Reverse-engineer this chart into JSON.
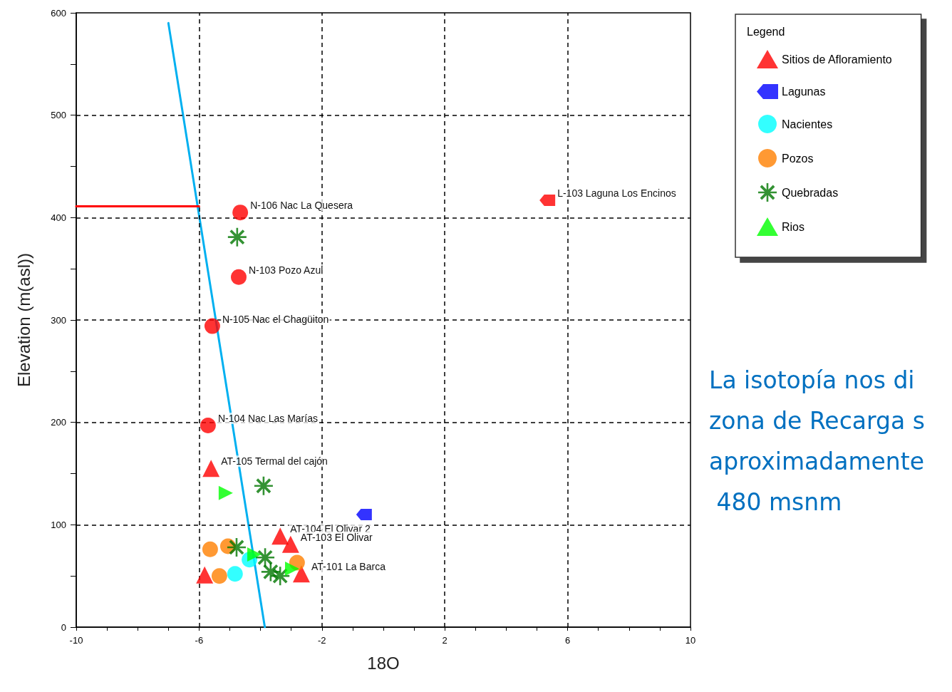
{
  "chart_data": {
    "type": "scatter",
    "xlabel": "18O",
    "ylabel": "Elevation (m(asl))",
    "legend_title": "Legend",
    "xlim": [
      -10,
      10
    ],
    "xticks": [
      -10,
      {
        "value": -9,
        "label": null
      },
      {
        "value": -8,
        "label": null
      },
      {
        "value": -7,
        "label": null
      },
      -6,
      {
        "value": -5,
        "label": null
      },
      {
        "value": -4,
        "label": null
      },
      {
        "value": -3,
        "label": null
      },
      -2,
      {
        "value": -1,
        "label": null
      },
      {
        "value": 0,
        "label": null
      },
      {
        "value": 1,
        "label": null
      },
      2,
      {
        "value": 3,
        "label": null
      },
      {
        "value": 4,
        "label": null
      },
      {
        "value": 5,
        "label": null
      },
      6,
      {
        "value": 7,
        "label": null
      },
      {
        "value": 8,
        "label": null
      },
      {
        "value": 9,
        "label": null
      },
      10
    ],
    "ylim": [
      0,
      600
    ],
    "yticks": [
      0,
      {
        "value": 50,
        "label": null
      },
      100,
      {
        "value": 150,
        "label": null
      },
      200,
      {
        "value": 250,
        "label": null
      },
      300,
      {
        "value": 350,
        "label": null
      },
      400,
      {
        "value": 450,
        "label": null
      },
      500,
      {
        "value": 550,
        "label": null
      },
      600
    ],
    "grid": true,
    "legend": "top right",
    "series": [
      {
        "name": "Sitios de Afloramiento",
        "color": "#ff0000",
        "marker": "triangle",
        "x": [
          -5.61,
          -3.36,
          -3.02,
          -2.67,
          -5.82
        ],
        "values": [
          155,
          89,
          81,
          52,
          51
        ]
      },
      {
        "name": "Lagunas",
        "color": "#0000ff",
        "marker": "square",
        "x": [
          -0.63,
          5.34
        ],
        "values": [
          110,
          417
        ],
        "colors": [
          "#0000ff",
          "#ff0000"
        ]
      },
      {
        "name": "Nacientes",
        "color": "#00ffff",
        "marker": "circle",
        "x": [
          -4.83,
          -4.36,
          -4.66,
          -4.71,
          -5.57,
          -5.71
        ],
        "values": [
          52,
          66,
          405,
          342,
          294,
          197
        ],
        "colors": [
          "#00ffff",
          "#00ffff",
          "#ff0000",
          "#ff0000",
          "#ff0000",
          "#ff0000"
        ]
      },
      {
        "name": "Pozos",
        "color": "#ff8000",
        "marker": "circle",
        "x": [
          -5.64,
          -5.06,
          -5.34,
          -2.81
        ],
        "values": [
          76,
          79,
          50,
          63
        ]
      },
      {
        "name": "Quebradas",
        "color": "#007700",
        "marker": "cross",
        "x": [
          -4.76,
          -3.9,
          -4.78,
          -3.85,
          -3.67,
          -3.36
        ],
        "values": [
          381,
          138,
          78,
          68,
          54,
          50
        ]
      },
      {
        "name": "Rios",
        "color": "#00ff00",
        "marker": "triangle",
        "x": [
          -5.13,
          -4.2,
          -2.97
        ],
        "values": [
          131,
          71,
          57
        ]
      },
      {
        "type": "line",
        "color": "#00b0f0",
        "marker": "none",
        "x": [
          -7.0,
          -3.86
        ],
        "values": [
          590,
          0
        ]
      },
      {
        "type": "line",
        "color": "#ff0000",
        "marker": "none",
        "x": [
          -10,
          -6
        ],
        "values": [
          411,
          411
        ]
      }
    ],
    "annotations": [
      {
        "text": "N-106 Nac La Quesera",
        "x": -4.66,
        "y": 405
      },
      {
        "text": "N-103 Pozo Azul",
        "x": -4.71,
        "y": 342
      },
      {
        "text": "N-105 Nac el Chagüiton",
        "x": -5.57,
        "y": 294
      },
      {
        "text": "N-104 Nac Las Marías",
        "x": -5.71,
        "y": 197
      },
      {
        "text": "AT-105 Termal del cajón",
        "x": -5.61,
        "y": 155
      },
      {
        "text": "AT-104 El Olivar 2",
        "x": -3.36,
        "y": 89
      },
      {
        "text": "AT-103 El Olivar",
        "x": -3.02,
        "y": 81
      },
      {
        "text": "AT-101 La Barca",
        "x": -2.67,
        "y": 52
      },
      {
        "text": "L-103 Laguna Los Encinos",
        "x": 5.34,
        "y": 417
      },
      "La isotopía nos di\nzona de Recarga s\naproximadamente\n 480 msnm"
    ]
  }
}
